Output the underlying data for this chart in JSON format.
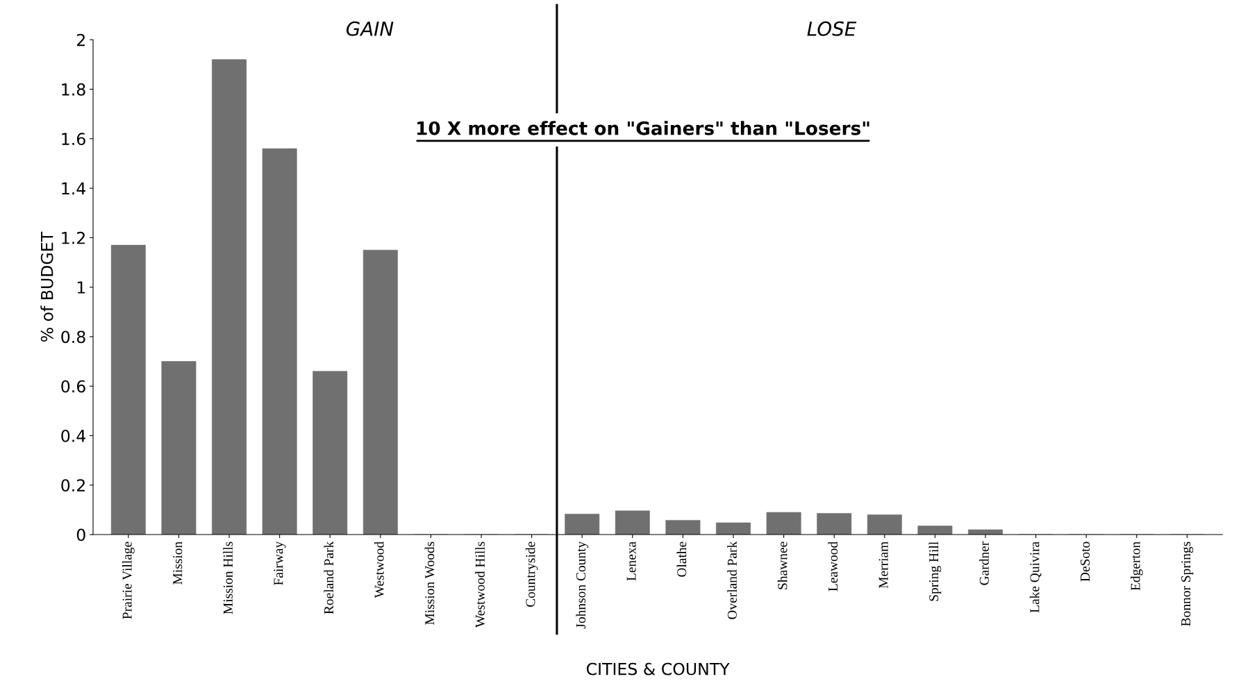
{
  "chart_data": {
    "type": "bar",
    "xlabel": "CITIES & COUNTY",
    "ylabel": "% of BUDGET",
    "categories": [
      "Prairie Village",
      "Mission",
      "Mission Hills",
      "Fairway",
      "Roeland Park",
      "Westwood",
      "Mission Woods",
      "Westwood Hills",
      "Countryside",
      "Johnson County",
      "Lenexa",
      "Olathe",
      "Overland Park",
      "Shawnee",
      "Leawood",
      "Merriam",
      "Spring Hill",
      "Gardner",
      "Lake Quivira",
      "DeSoto",
      "Edgerton",
      "Bonnor Springs"
    ],
    "values": [
      1.17,
      0.7,
      1.92,
      1.56,
      0.66,
      1.15,
      0,
      0,
      0,
      0.083,
      0.096,
      0.058,
      0.048,
      0.09,
      0.086,
      0.08,
      0.035,
      0.02,
      0,
      0,
      0,
      0
    ],
    "color": "#707070",
    "ylim": [
      0,
      2
    ],
    "yticks": [
      0,
      0.2,
      0.4,
      0.6,
      0.8,
      1,
      1.2,
      1.4,
      1.6,
      1.8,
      2
    ],
    "grid": false,
    "legend": false,
    "annotations": [
      "GAIN",
      "LOSE",
      "10 X more effect on \"Gainers\" than \"Losers\""
    ]
  }
}
